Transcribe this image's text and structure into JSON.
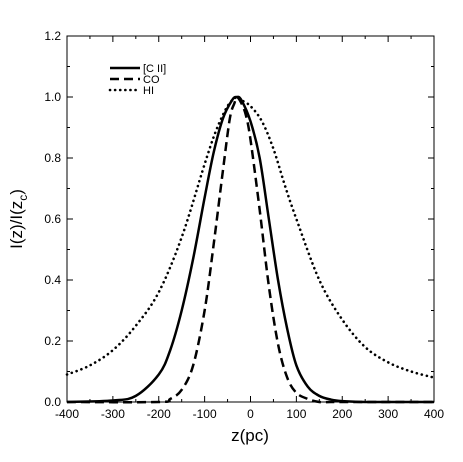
{
  "chart_data": {
    "type": "line",
    "xlabel": "z(pc)",
    "ylabel": "I(z)/I(z_c)",
    "xlim": [
      -400,
      400
    ],
    "ylim": [
      0,
      1.2
    ],
    "x_ticks": [
      "-400",
      "-300",
      "-200",
      "-100",
      "0",
      "100",
      "200",
      "300",
      "400"
    ],
    "y_ticks": [
      "0.0",
      "0.2",
      "0.4",
      "0.6",
      "0.8",
      "1.0",
      "1.2"
    ],
    "legend_position": "top-left",
    "grid": false,
    "series": [
      {
        "name": "[C II]",
        "style": "solid",
        "x": [
          -400,
          -300,
          -250,
          -200,
          -175,
          -150,
          -125,
          -100,
          -80,
          -60,
          -40,
          -30,
          -20,
          0,
          20,
          40,
          60,
          80,
          100,
          125,
          150,
          175,
          200,
          250,
          300,
          400
        ],
        "y": [
          0.0,
          0.005,
          0.02,
          0.09,
          0.17,
          0.3,
          0.47,
          0.67,
          0.82,
          0.93,
          0.99,
          1.0,
          0.99,
          0.92,
          0.8,
          0.6,
          0.4,
          0.24,
          0.12,
          0.05,
          0.02,
          0.008,
          0.003,
          0.0,
          0.0,
          0.0
        ]
      },
      {
        "name": "CO",
        "style": "dashed",
        "x": [
          -400,
          -200,
          -175,
          -150,
          -125,
          -100,
          -80,
          -60,
          -45,
          -35,
          -30,
          -20,
          -10,
          0,
          20,
          40,
          60,
          80,
          100,
          125,
          150,
          175,
          200,
          400
        ],
        "y": [
          0.0,
          0.0,
          0.01,
          0.04,
          0.12,
          0.3,
          0.52,
          0.76,
          0.93,
          0.98,
          1.0,
          0.98,
          0.94,
          0.86,
          0.63,
          0.38,
          0.19,
          0.08,
          0.03,
          0.01,
          0.0,
          0.0,
          0.0,
          0.0
        ]
      },
      {
        "name": "HI",
        "style": "dotted",
        "x": [
          -400,
          -350,
          -300,
          -250,
          -200,
          -150,
          -100,
          -75,
          -50,
          -30,
          -20,
          0,
          25,
          50,
          75,
          100,
          150,
          200,
          250,
          300,
          350,
          400
        ],
        "y": [
          0.09,
          0.12,
          0.17,
          0.25,
          0.36,
          0.54,
          0.78,
          0.89,
          0.97,
          1.0,
          0.99,
          0.97,
          0.92,
          0.83,
          0.71,
          0.6,
          0.4,
          0.27,
          0.18,
          0.13,
          0.1,
          0.08
        ]
      }
    ]
  }
}
